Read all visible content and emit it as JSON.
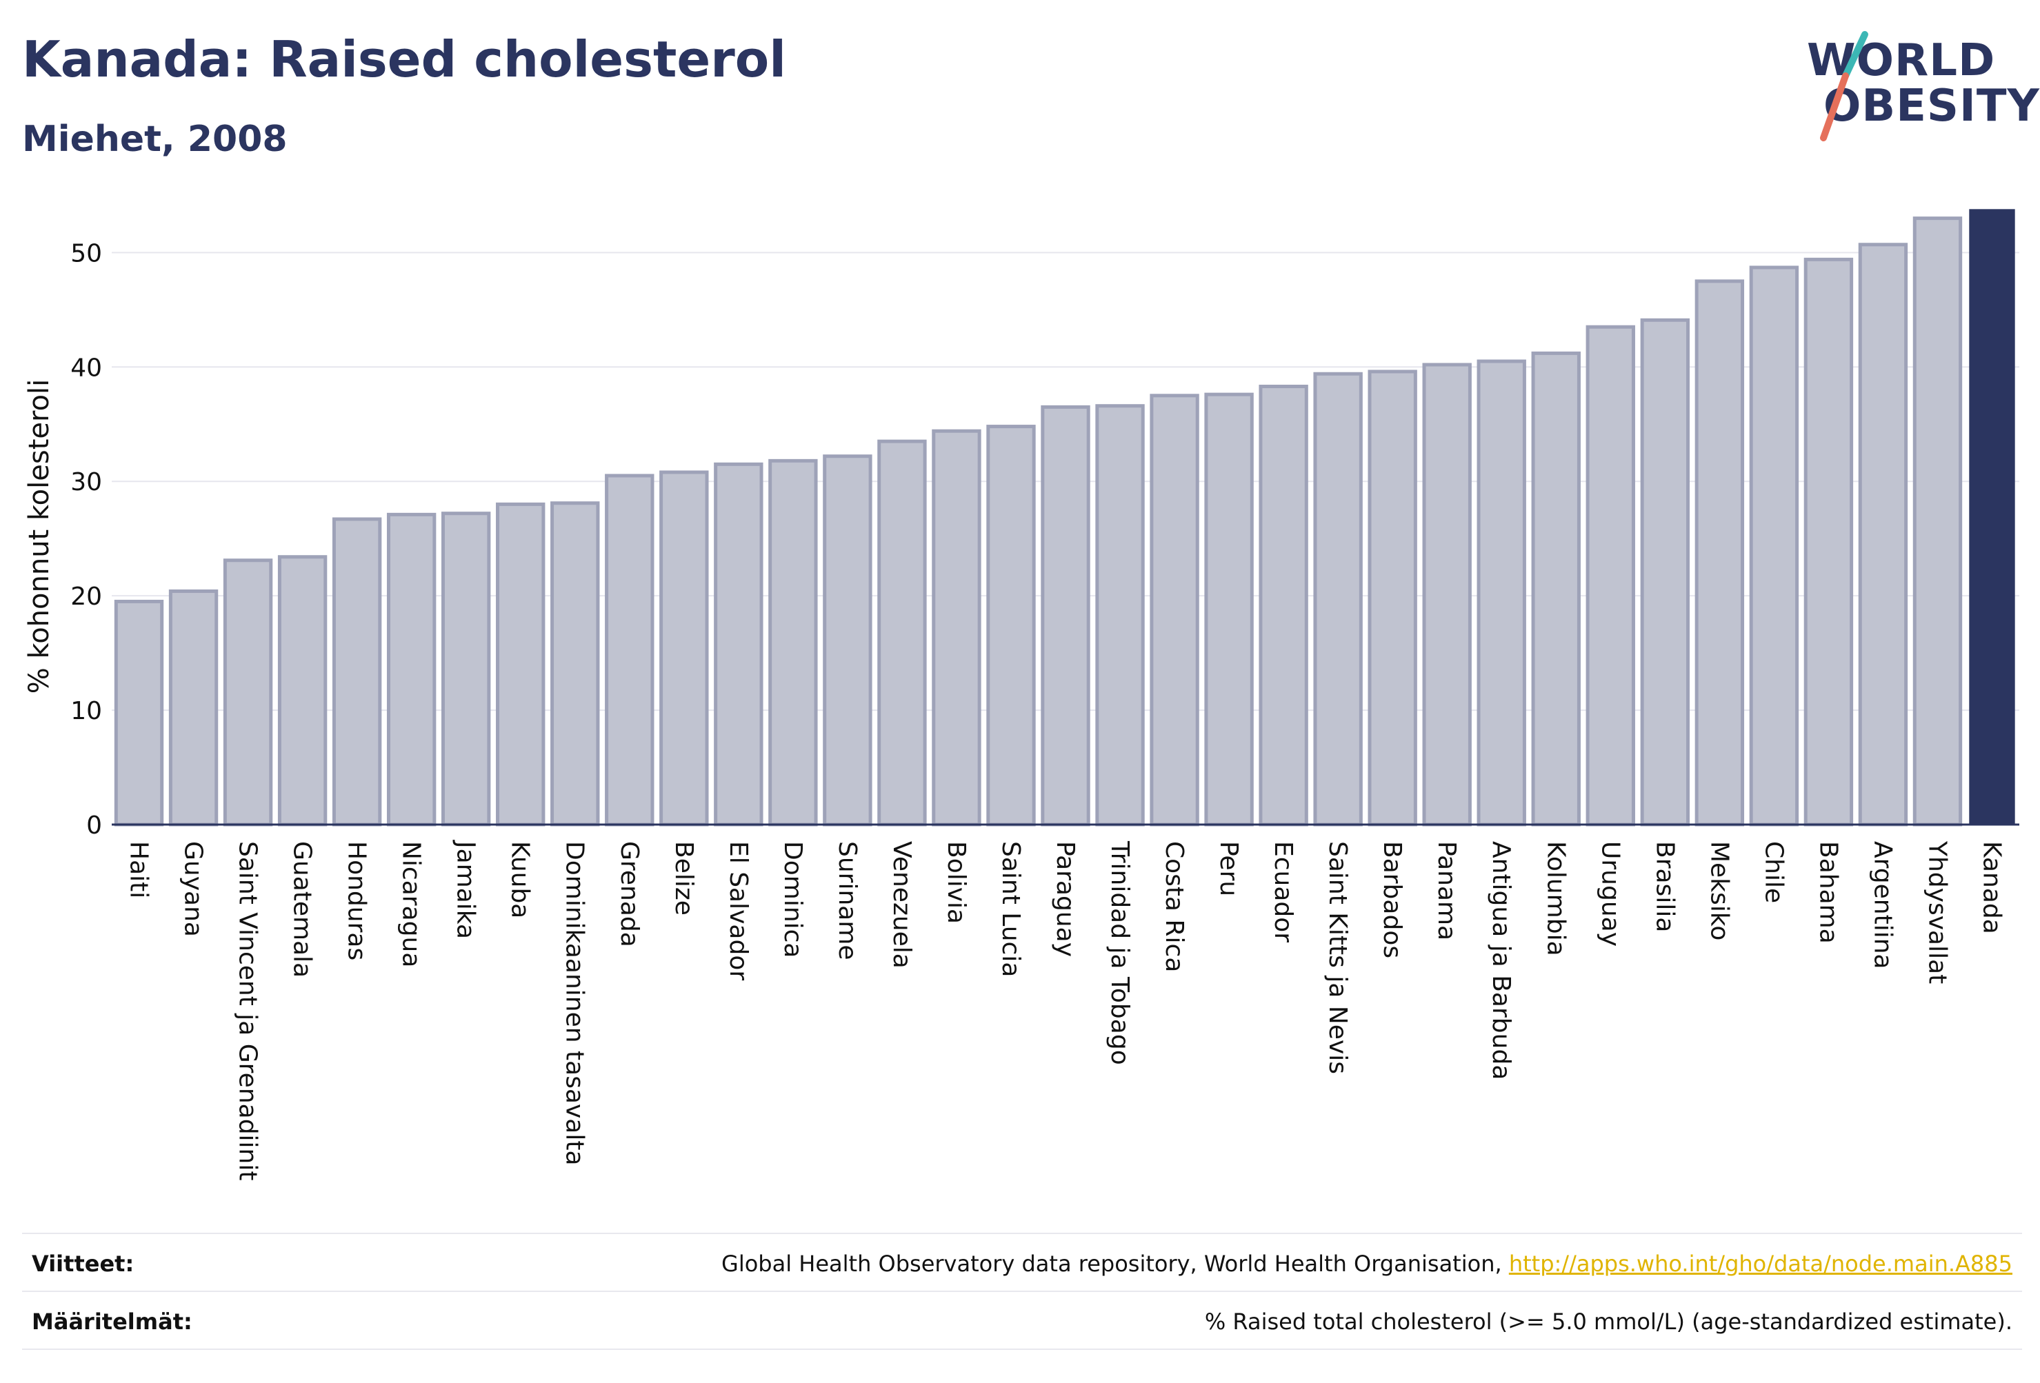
{
  "title": "Kanada: Raised cholesterol",
  "subtitle": "Miehet, 2008",
  "logo": {
    "line1": "WORLD",
    "line2": "OBESITY"
  },
  "footer": {
    "references_label": "Viitteet:",
    "references_text": "Global Health Observatory data repository, World Health Organisation,",
    "references_link": "http://apps.who.int/gho/data/node.main.A885",
    "definitions_label": "Määritelmät:",
    "definitions_text": "% Raised total cholesterol (>= 5.0 mmol/L) (age-standardized estimate)."
  },
  "colors": {
    "bar": "#c0c3d0",
    "bar_border": "#9ea2b8",
    "highlight": "#2b3560",
    "grid": "#e6e6ee",
    "text": "#111111"
  },
  "chart_data": {
    "type": "bar",
    "ylabel": "% kohonnut kolesteroli",
    "ylim": [
      0,
      54
    ],
    "yticks": [
      0,
      10,
      20,
      30,
      40,
      50
    ],
    "grid": true,
    "highlight": "Kanada",
    "categories": [
      "Haiti",
      "Guyana",
      "Saint Vincent ja Grenadiinit",
      "Guatemala",
      "Honduras",
      "Nicaragua",
      "Jamaika",
      "Kuuba",
      "Dominikaaninen tasavalta",
      "Grenada",
      "Belize",
      "El Salvador",
      "Dominica",
      "Suriname",
      "Venezuela",
      "Bolivia",
      "Saint Lucia",
      "Paraguay",
      "Trinidad ja Tobago",
      "Costa Rica",
      "Peru",
      "Ecuador",
      "Saint Kitts ja Nevis",
      "Barbados",
      "Panama",
      "Antigua ja Barbuda",
      "Kolumbia",
      "Uruguay",
      "Brasilia",
      "Meksiko",
      "Chile",
      "Bahama",
      "Argentiina",
      "Yhdysvallat",
      "Kanada"
    ],
    "values": [
      19.5,
      20.4,
      23.1,
      23.4,
      26.7,
      27.1,
      27.2,
      28.0,
      28.1,
      30.5,
      30.8,
      31.5,
      31.8,
      32.2,
      33.5,
      34.4,
      34.8,
      36.5,
      36.6,
      37.5,
      37.6,
      38.3,
      39.4,
      39.6,
      40.2,
      40.5,
      41.2,
      43.5,
      44.1,
      47.5,
      48.7,
      49.4,
      50.7,
      53.0,
      53.8
    ]
  }
}
